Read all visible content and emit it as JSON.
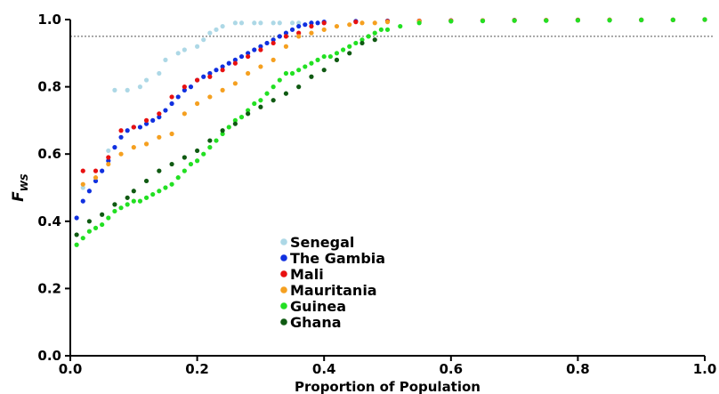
{
  "chart_data": {
    "type": "scatter",
    "title": "",
    "xlabel": "Proportion of Population",
    "ylabel": "F",
    "ylabel_subscript": "WS",
    "xlim": [
      0,
      1
    ],
    "ylim": [
      0,
      1
    ],
    "xticks": [
      "0.0",
      "0.2",
      "0.4",
      "0.6",
      "0.8",
      "1.0"
    ],
    "yticks": [
      "0.0",
      "0.2",
      "0.4",
      "0.6",
      "0.8",
      "1.0"
    ],
    "reference_line_y": 0.95,
    "grid": false,
    "legend_position": "center-lower",
    "series": [
      {
        "name": "Senegal",
        "color": "#add8e6",
        "x": [
          0.02,
          0.03,
          0.04,
          0.06,
          0.07,
          0.09,
          0.11,
          0.12,
          0.14,
          0.15,
          0.17,
          0.18,
          0.2,
          0.21,
          0.22,
          0.23,
          0.24,
          0.26,
          0.27,
          0.29,
          0.3,
          0.32,
          0.33,
          0.35,
          0.36,
          0.38,
          0.4,
          0.45,
          0.5,
          0.55,
          0.6,
          0.65,
          0.7,
          0.75,
          0.8,
          0.85,
          0.9,
          0.95,
          1.0
        ],
        "y": [
          0.5,
          0.49,
          0.52,
          0.61,
          0.79,
          0.79,
          0.8,
          0.82,
          0.84,
          0.88,
          0.9,
          0.91,
          0.92,
          0.94,
          0.96,
          0.97,
          0.98,
          0.99,
          0.99,
          0.99,
          0.99,
          0.99,
          0.99,
          0.99,
          0.99,
          0.99,
          0.99,
          0.995,
          0.995,
          0.995,
          0.995,
          0.996,
          0.997,
          0.997,
          0.998,
          0.998,
          0.998,
          0.999,
          1.0
        ]
      },
      {
        "name": "The Gambia",
        "color": "#1030e0",
        "x": [
          0.01,
          0.02,
          0.03,
          0.04,
          0.05,
          0.06,
          0.07,
          0.08,
          0.09,
          0.1,
          0.11,
          0.12,
          0.13,
          0.14,
          0.15,
          0.16,
          0.17,
          0.18,
          0.19,
          0.2,
          0.21,
          0.22,
          0.23,
          0.24,
          0.25,
          0.26,
          0.27,
          0.28,
          0.29,
          0.3,
          0.31,
          0.32,
          0.33,
          0.34,
          0.35,
          0.36,
          0.37,
          0.38,
          0.39,
          0.4,
          0.45,
          0.5,
          0.55,
          0.6,
          0.65,
          0.7,
          0.75,
          0.8,
          0.85,
          0.9,
          0.95,
          1.0
        ],
        "y": [
          0.41,
          0.46,
          0.49,
          0.52,
          0.55,
          0.58,
          0.62,
          0.65,
          0.67,
          0.68,
          0.68,
          0.69,
          0.7,
          0.71,
          0.73,
          0.75,
          0.77,
          0.79,
          0.8,
          0.82,
          0.83,
          0.84,
          0.85,
          0.86,
          0.87,
          0.88,
          0.89,
          0.9,
          0.91,
          0.92,
          0.93,
          0.94,
          0.95,
          0.96,
          0.97,
          0.98,
          0.985,
          0.99,
          0.99,
          0.993,
          0.995,
          0.996,
          0.996,
          0.997,
          0.997,
          0.998,
          0.998,
          0.998,
          0.999,
          0.999,
          0.999,
          1.0
        ]
      },
      {
        "name": "Mali",
        "color": "#e81010",
        "x": [
          0.02,
          0.04,
          0.06,
          0.08,
          0.1,
          0.12,
          0.14,
          0.16,
          0.18,
          0.2,
          0.22,
          0.24,
          0.26,
          0.28,
          0.3,
          0.32,
          0.34,
          0.36,
          0.38,
          0.4,
          0.45,
          0.5,
          0.55,
          0.6,
          0.65,
          0.7,
          0.75,
          0.8,
          0.85,
          0.9,
          0.95,
          1.0
        ],
        "y": [
          0.55,
          0.55,
          0.59,
          0.67,
          0.68,
          0.7,
          0.72,
          0.77,
          0.8,
          0.82,
          0.83,
          0.85,
          0.87,
          0.89,
          0.91,
          0.93,
          0.95,
          0.96,
          0.98,
          0.99,
          0.993,
          0.995,
          0.996,
          0.997,
          0.997,
          0.998,
          0.998,
          0.999,
          0.999,
          0.999,
          0.999,
          1.0
        ]
      },
      {
        "name": "Mauritania",
        "color": "#f5a020",
        "x": [
          0.02,
          0.04,
          0.06,
          0.08,
          0.1,
          0.12,
          0.14,
          0.16,
          0.18,
          0.2,
          0.22,
          0.24,
          0.26,
          0.28,
          0.3,
          0.32,
          0.34,
          0.36,
          0.38,
          0.4,
          0.42,
          0.44,
          0.46,
          0.48,
          0.5,
          0.55,
          0.6,
          0.65,
          0.7,
          0.75,
          0.8,
          0.85,
          0.9,
          0.95,
          1.0
        ],
        "y": [
          0.51,
          0.53,
          0.57,
          0.6,
          0.62,
          0.63,
          0.65,
          0.66,
          0.72,
          0.75,
          0.77,
          0.79,
          0.81,
          0.84,
          0.86,
          0.88,
          0.92,
          0.95,
          0.96,
          0.97,
          0.98,
          0.985,
          0.99,
          0.99,
          0.993,
          0.995,
          0.996,
          0.997,
          0.997,
          0.998,
          0.998,
          0.999,
          0.999,
          0.999,
          1.0
        ]
      },
      {
        "name": "Guinea",
        "color": "#22e022",
        "x": [
          0.01,
          0.02,
          0.03,
          0.04,
          0.05,
          0.06,
          0.07,
          0.08,
          0.09,
          0.1,
          0.11,
          0.12,
          0.13,
          0.14,
          0.15,
          0.16,
          0.17,
          0.18,
          0.19,
          0.2,
          0.21,
          0.22,
          0.23,
          0.24,
          0.25,
          0.26,
          0.27,
          0.28,
          0.29,
          0.3,
          0.31,
          0.32,
          0.33,
          0.34,
          0.35,
          0.36,
          0.37,
          0.38,
          0.39,
          0.4,
          0.41,
          0.42,
          0.43,
          0.44,
          0.45,
          0.46,
          0.47,
          0.48,
          0.49,
          0.5,
          0.52,
          0.55,
          0.6,
          0.65,
          0.7,
          0.75,
          0.8,
          0.85,
          0.9,
          0.95,
          1.0
        ],
        "y": [
          0.33,
          0.35,
          0.37,
          0.38,
          0.39,
          0.41,
          0.43,
          0.44,
          0.45,
          0.46,
          0.46,
          0.47,
          0.48,
          0.49,
          0.5,
          0.51,
          0.53,
          0.55,
          0.57,
          0.58,
          0.6,
          0.62,
          0.64,
          0.66,
          0.68,
          0.7,
          0.71,
          0.73,
          0.75,
          0.76,
          0.78,
          0.8,
          0.82,
          0.84,
          0.84,
          0.85,
          0.86,
          0.87,
          0.88,
          0.89,
          0.89,
          0.9,
          0.91,
          0.92,
          0.93,
          0.94,
          0.95,
          0.96,
          0.97,
          0.97,
          0.98,
          0.99,
          0.995,
          0.996,
          0.997,
          0.997,
          0.998,
          0.998,
          0.999,
          0.999,
          1.0
        ]
      },
      {
        "name": "Ghana",
        "color": "#0f5a12",
        "x": [
          0.01,
          0.03,
          0.05,
          0.07,
          0.09,
          0.1,
          0.12,
          0.14,
          0.16,
          0.18,
          0.2,
          0.22,
          0.24,
          0.26,
          0.28,
          0.3,
          0.32,
          0.34,
          0.36,
          0.38,
          0.4,
          0.42,
          0.44,
          0.46,
          0.48
        ],
        "y": [
          0.36,
          0.4,
          0.42,
          0.45,
          0.47,
          0.49,
          0.52,
          0.55,
          0.57,
          0.59,
          0.61,
          0.64,
          0.67,
          0.69,
          0.72,
          0.74,
          0.76,
          0.78,
          0.8,
          0.83,
          0.85,
          0.88,
          0.9,
          0.93,
          0.94
        ]
      }
    ]
  }
}
